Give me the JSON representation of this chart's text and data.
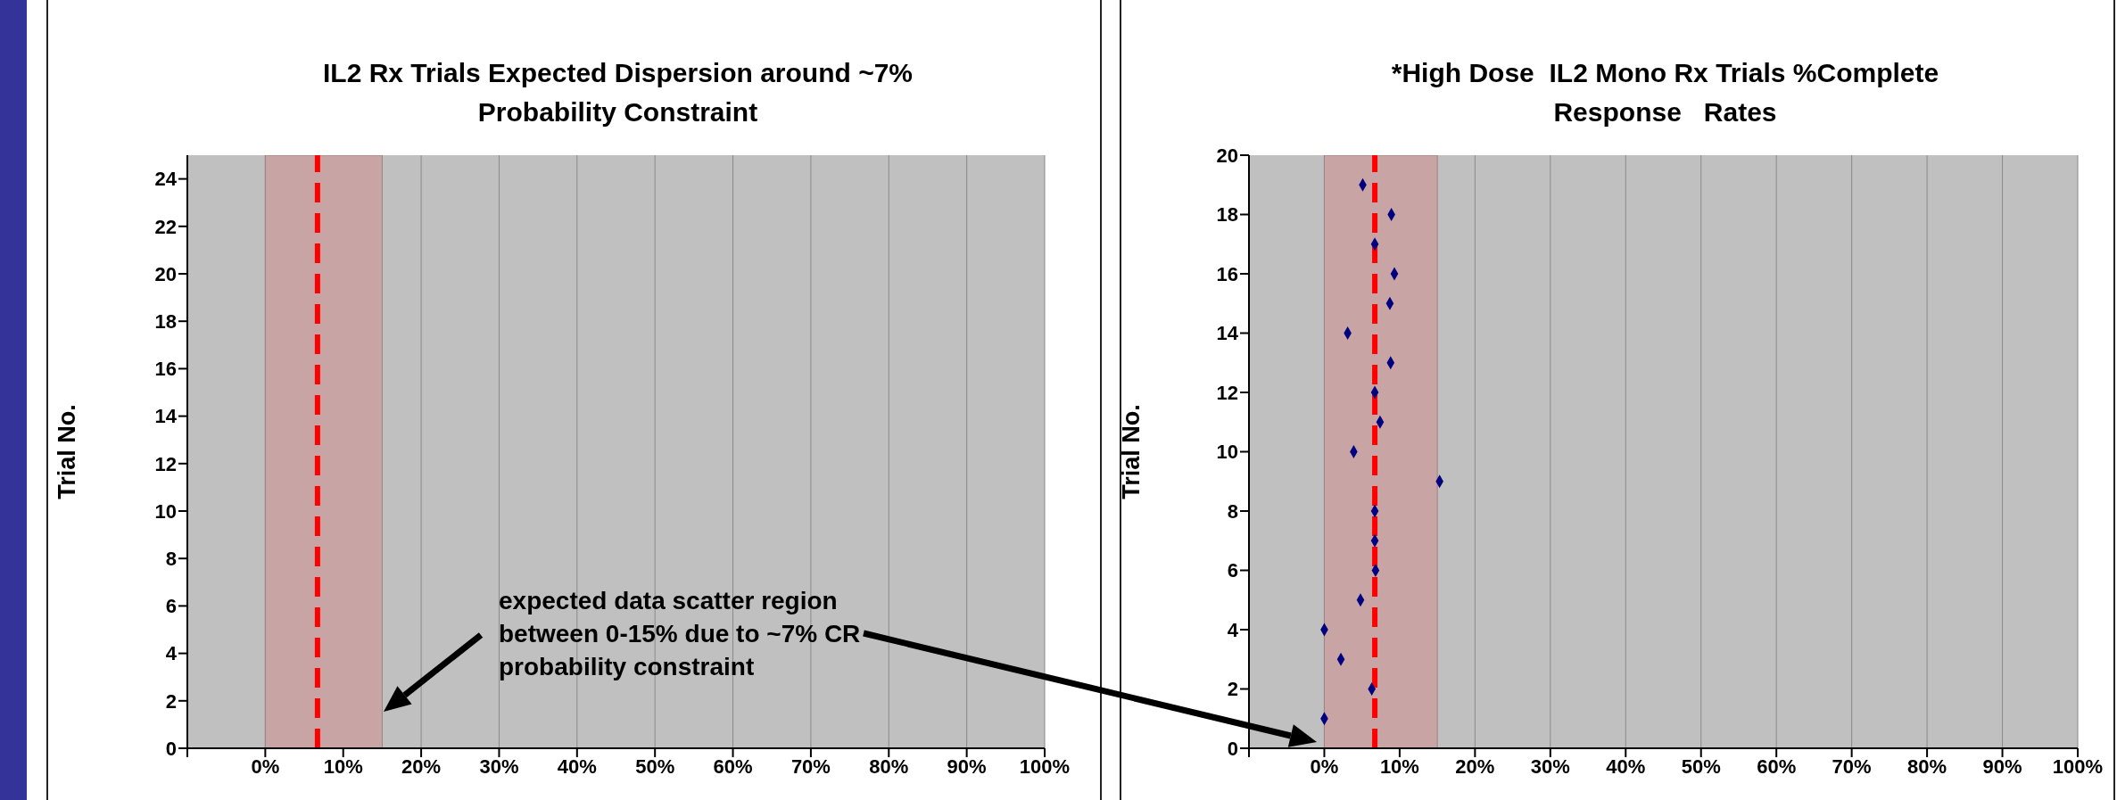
{
  "chart_data": [
    {
      "type": "scatter",
      "title": "IL2 Rx Trials Expected Dispersion around ~7% Probability Constraint",
      "ylabel": "Trial No.",
      "annotations": [
        "expected data scatter region between 0-15% due to ~7% CR probability constraint"
      ],
      "xlim": [
        -10,
        100
      ],
      "xticks": [
        {
          "value": -10,
          "label": null
        },
        {
          "value": 0,
          "label": "0%"
        },
        {
          "value": 10,
          "label": "10%"
        },
        {
          "value": 20,
          "label": "20%"
        },
        {
          "value": 30,
          "label": "30%"
        },
        {
          "value": 40,
          "label": "40%"
        },
        {
          "value": 50,
          "label": "50%"
        },
        {
          "value": 60,
          "label": "60%"
        },
        {
          "value": 70,
          "label": "70%"
        },
        {
          "value": 80,
          "label": "80%"
        },
        {
          "value": 90,
          "label": "90%"
        },
        {
          "value": 100,
          "label": "100%"
        }
      ],
      "ylim": [
        0,
        25
      ],
      "yticks": [
        0,
        2,
        4,
        6,
        8,
        10,
        12,
        14,
        16,
        18,
        20,
        22,
        24
      ],
      "grid": "x",
      "bands": [
        {
          "axis": "x",
          "from": 0,
          "to": 15,
          "color": "#c8a4a4"
        }
      ],
      "ref_lines": [
        {
          "axis": "x",
          "value": 6.7,
          "color": "#ff0000",
          "line_style": "dashed"
        }
      ]
    },
    {
      "type": "scatter",
      "title": "*High Dose  IL2 Mono Rx Trials %Complete Response   Rates",
      "ylabel": "Trial No.",
      "xlim": [
        -10,
        100
      ],
      "xticks": [
        {
          "value": -10,
          "label": null
        },
        {
          "value": 0,
          "label": "0%"
        },
        {
          "value": 10,
          "label": "10%"
        },
        {
          "value": 20,
          "label": "20%"
        },
        {
          "value": 30,
          "label": "30%"
        },
        {
          "value": 40,
          "label": "40%"
        },
        {
          "value": 50,
          "label": "50%"
        },
        {
          "value": 60,
          "label": "60%"
        },
        {
          "value": 70,
          "label": "70%"
        },
        {
          "value": 80,
          "label": "80%"
        },
        {
          "value": 90,
          "label": "90%"
        },
        {
          "value": 100,
          "label": "100%"
        }
      ],
      "ylim": [
        0,
        20
      ],
      "yticks": [
        0,
        2,
        4,
        6,
        8,
        10,
        12,
        14,
        16,
        18,
        20
      ],
      "grid": "x",
      "marker": "diamond",
      "x": [
        0,
        6.3,
        2.2,
        0,
        4.8,
        6.8,
        6.7,
        6.7,
        15.3,
        3.9,
        7.4,
        6.7,
        8.8,
        3.1,
        8.7,
        9.3,
        6.7,
        8.9,
        5.1
      ],
      "values": [
        1,
        2,
        3,
        4,
        5,
        6,
        7,
        8,
        9,
        10,
        11,
        12,
        13,
        14,
        15,
        16,
        17,
        18,
        19
      ],
      "color": "#000080",
      "bands": [
        {
          "axis": "x",
          "from": 0,
          "to": 15,
          "color": "#c8a4a4"
        }
      ],
      "ref_lines": [
        {
          "axis": "x",
          "value": 6.7,
          "color": "#ff0000",
          "line_style": "dashed"
        }
      ]
    }
  ]
}
